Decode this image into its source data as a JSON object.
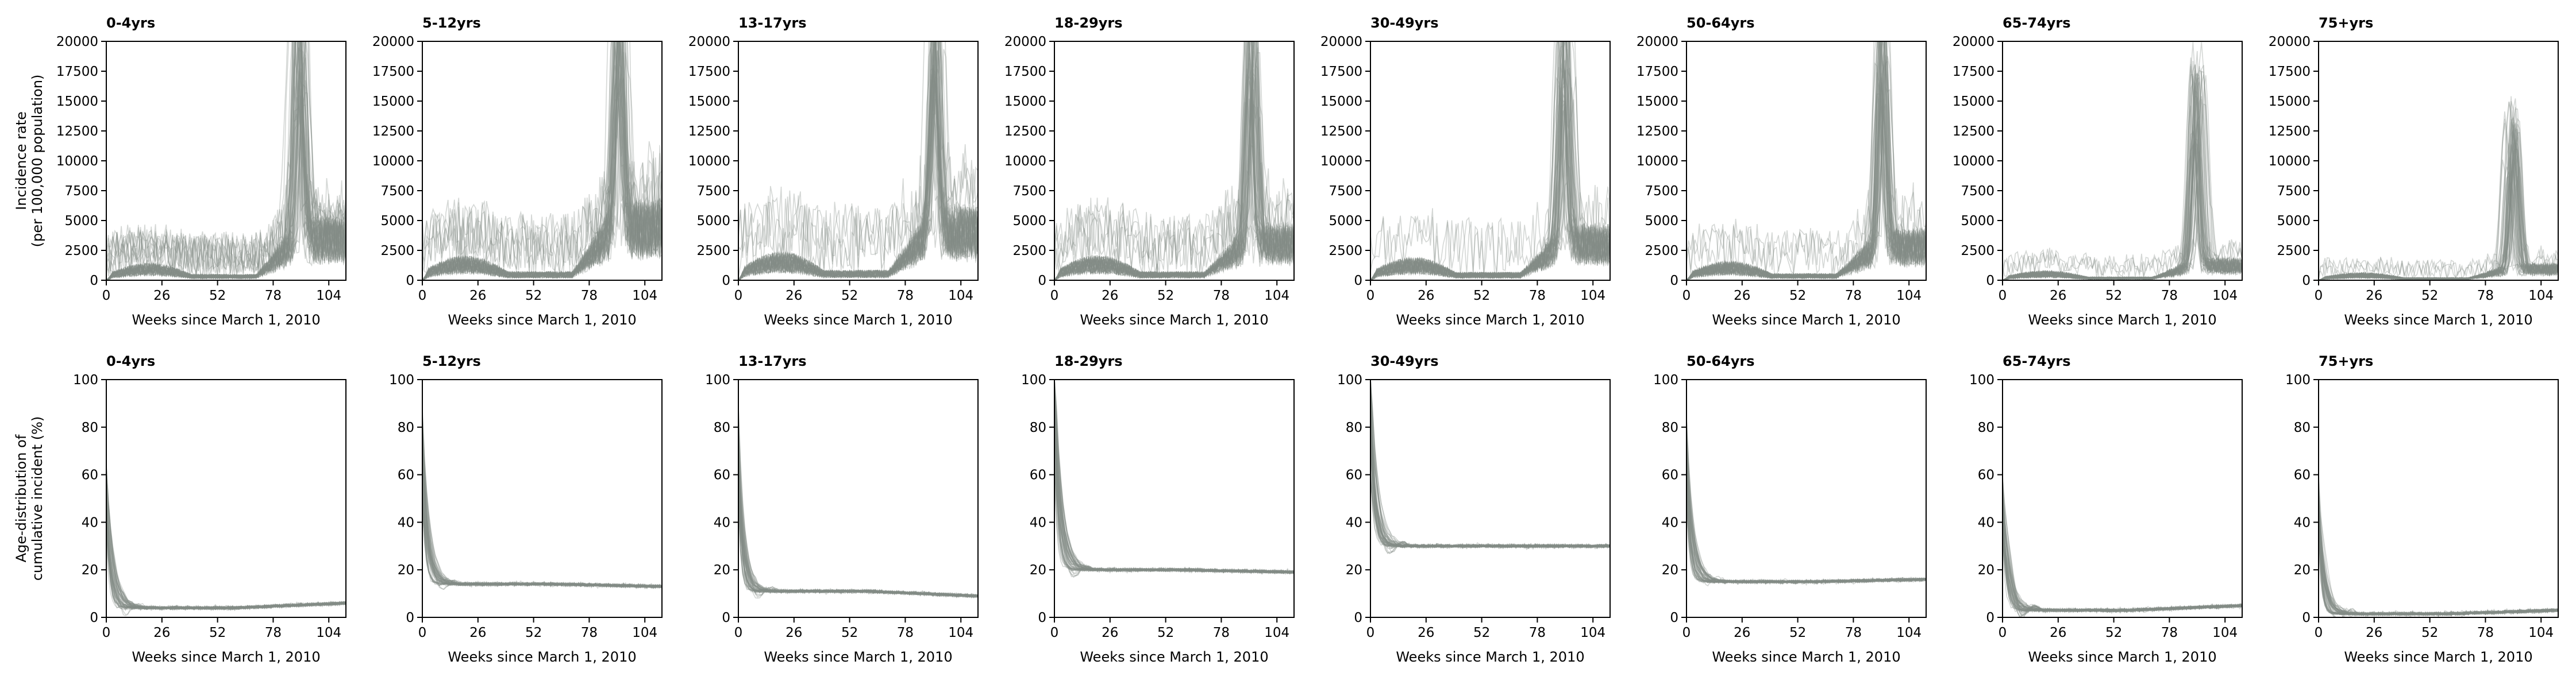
{
  "figure": {
    "row_labels": {
      "incidence": [
        "Incidence rate",
        "(per 100,000 population)"
      ],
      "distribution": [
        "Age-distribution of",
        "cumulative incident (%)"
      ]
    },
    "line_color": "#858C88",
    "background": "#ffffff"
  },
  "chart_data": [
    {
      "type": "line",
      "row": "incidence",
      "panels": [
        {
          "title": "0-4yrs",
          "peak_week": 90,
          "peak": 20500,
          "base": 900,
          "late_level": 3500
        },
        {
          "title": "5-12yrs",
          "peak_week": 92,
          "peak": 20500,
          "base": 1300,
          "late_level": 4500
        },
        {
          "title": "13-17yrs",
          "peak_week": 92,
          "peak": 20500,
          "base": 1500,
          "late_level": 4000
        },
        {
          "title": "18-29yrs",
          "peak_week": 92,
          "peak": 20500,
          "base": 1300,
          "late_level": 3000
        },
        {
          "title": "30-49yrs",
          "peak_week": 91,
          "peak": 20500,
          "base": 1200,
          "late_level": 3000
        },
        {
          "title": "50-64yrs",
          "peak_week": 91,
          "peak": 20500,
          "base": 1000,
          "late_level": 2800
        },
        {
          "title": "65-74yrs",
          "peak_week": 91,
          "peak": 17000,
          "base": 500,
          "late_level": 1200
        },
        {
          "title": "75+yrs",
          "peak_week": 91,
          "peak": 13000,
          "base": 400,
          "late_level": 900
        }
      ],
      "xlabel": "Weeks since March 1, 2010",
      "xticks": [
        0,
        26,
        52,
        78,
        104
      ],
      "xlim": [
        0,
        112
      ],
      "yticks": [
        0,
        2500,
        5000,
        7500,
        10000,
        12500,
        15000,
        17500,
        20000
      ],
      "ylim": [
        0,
        20000
      ]
    },
    {
      "type": "line",
      "row": "distribution",
      "panels": [
        {
          "title": "0-4yrs",
          "start": 55,
          "settle": 4,
          "end": 6
        },
        {
          "title": "5-12yrs",
          "start": 75,
          "settle": 14,
          "end": 13
        },
        {
          "title": "13-17yrs",
          "start": 75,
          "settle": 11,
          "end": 9
        },
        {
          "title": "18-29yrs",
          "start": 95,
          "settle": 20,
          "end": 19
        },
        {
          "title": "30-49yrs",
          "start": 95,
          "settle": 30,
          "end": 30
        },
        {
          "title": "50-64yrs",
          "start": 70,
          "settle": 15,
          "end": 16
        },
        {
          "title": "65-74yrs",
          "start": 50,
          "settle": 3,
          "end": 5
        },
        {
          "title": "75+yrs",
          "start": 50,
          "settle": 1.5,
          "end": 3
        }
      ],
      "xlabel": "Weeks since March 1, 2010",
      "xticks": [
        0,
        26,
        52,
        78,
        104
      ],
      "xlim": [
        0,
        112
      ],
      "yticks": [
        0,
        20,
        40,
        60,
        80,
        100
      ],
      "ylim": [
        0,
        100
      ]
    }
  ]
}
